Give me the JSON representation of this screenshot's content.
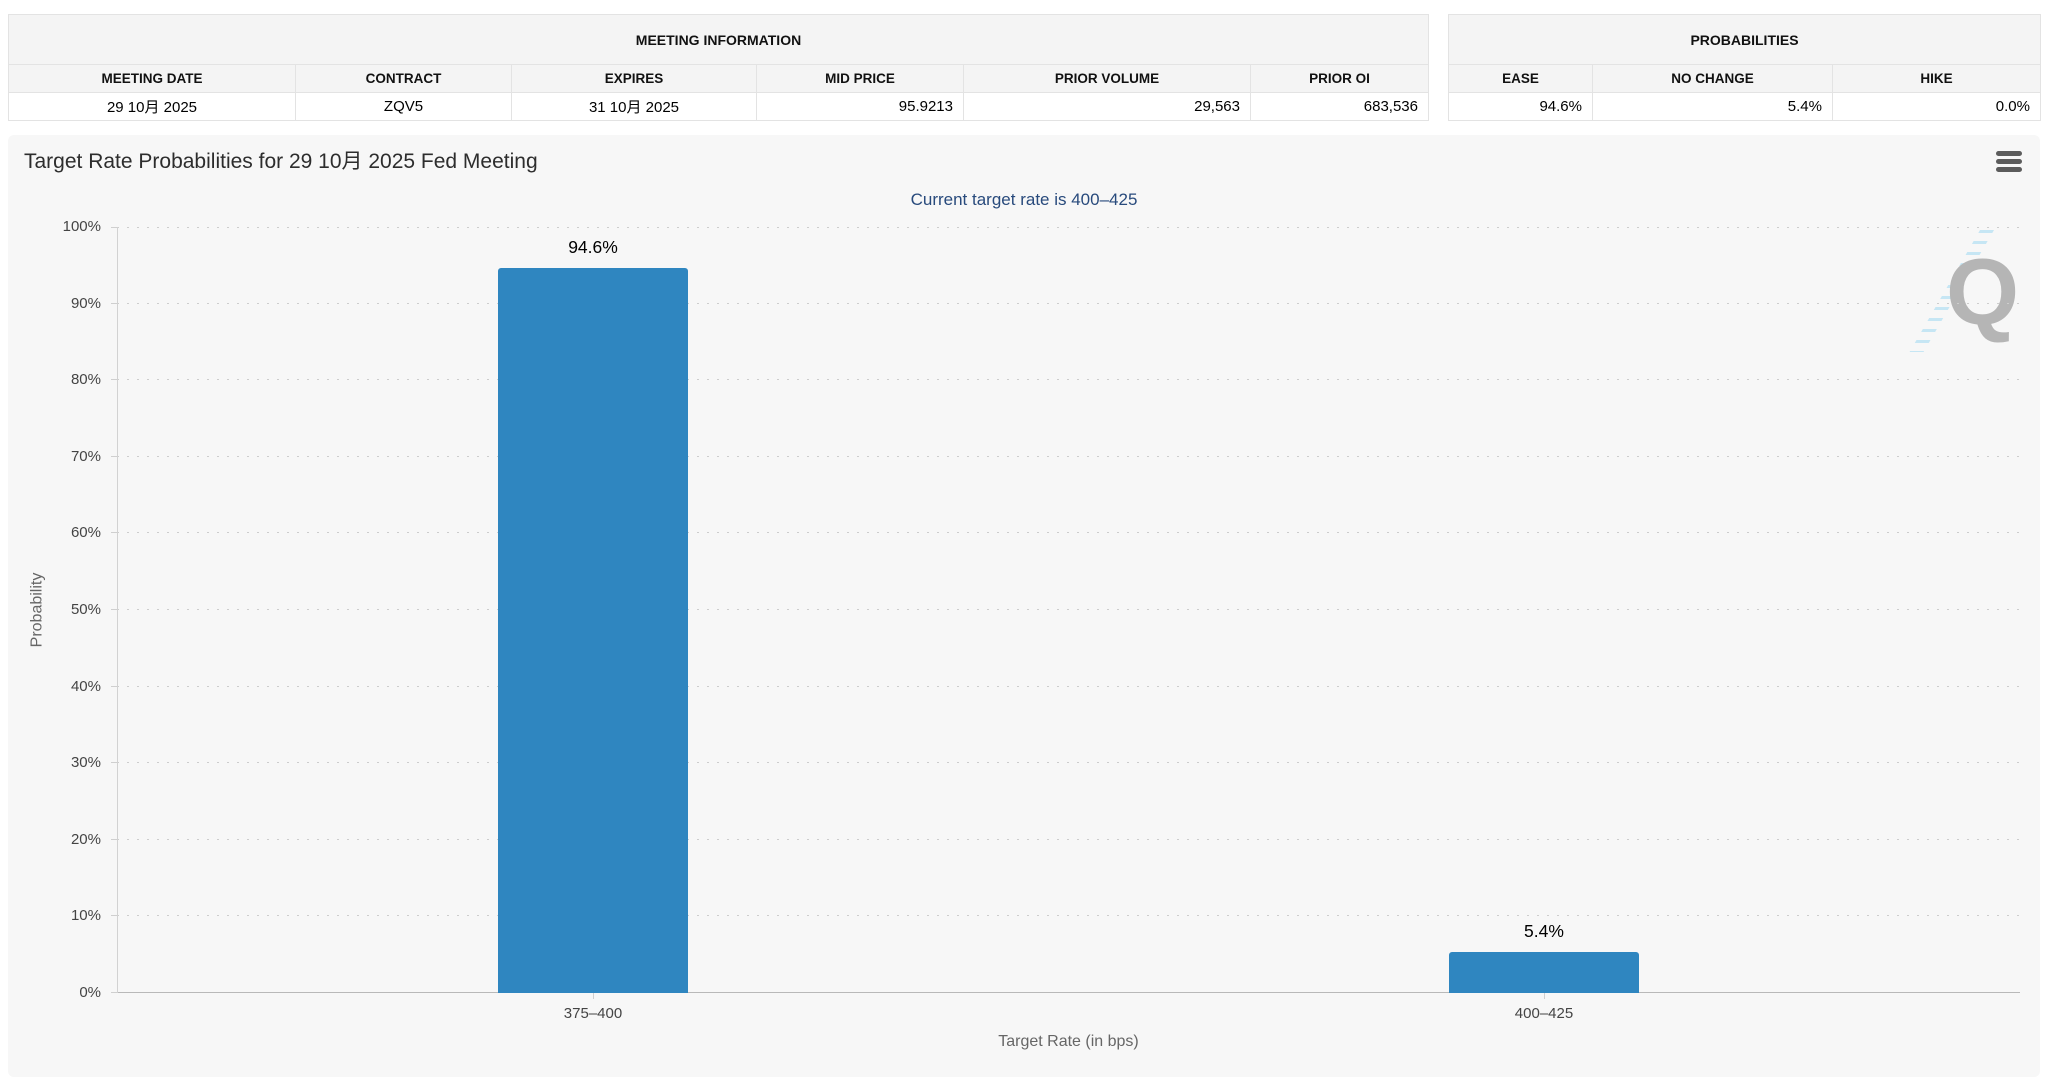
{
  "meeting_information": {
    "title": "MEETING INFORMATION",
    "columns": [
      "MEETING DATE",
      "CONTRACT",
      "EXPIRES",
      "MID PRICE",
      "PRIOR VOLUME",
      "PRIOR OI"
    ],
    "values": {
      "meeting_date": "29 10月 2025",
      "contract": "ZQV5",
      "expires": "31 10月 2025",
      "mid_price": "95.9213",
      "prior_volume": "29,563",
      "prior_oi": "683,536"
    }
  },
  "probabilities": {
    "title": "PROBABILITIES",
    "columns": [
      "EASE",
      "NO CHANGE",
      "HIKE"
    ],
    "values": {
      "ease": "94.6%",
      "no_change": "5.4%",
      "hike": "0.0%"
    }
  },
  "chart": {
    "title": "Target Rate Probabilities for 29 10月 2025 Fed Meeting",
    "subtitle": "Current target rate is 400–425",
    "subtitle_color": "#284a7c",
    "export_menu_icon": "hamburger-icon",
    "watermark_letter": "Q"
  },
  "chart_data": {
    "type": "bar",
    "title": "Target Rate Probabilities for 29 10月 2025 Fed Meeting",
    "subtitle": "Current target rate is 400–425",
    "categories": [
      "375–400",
      "400–425"
    ],
    "values": [
      94.6,
      5.4
    ],
    "data_labels": [
      "94.6%",
      "5.4%"
    ],
    "xlabel": "Target Rate (in bps)",
    "ylabel": "Probability",
    "ylim": [
      0,
      100
    ],
    "ytick_labels": [
      "0%",
      "10%",
      "20%",
      "30%",
      "40%",
      "50%",
      "60%",
      "70%",
      "80%",
      "90%",
      "100%"
    ],
    "bar_color": "#2f86c0",
    "grid": "dotted-horizontal",
    "legend": "none"
  }
}
